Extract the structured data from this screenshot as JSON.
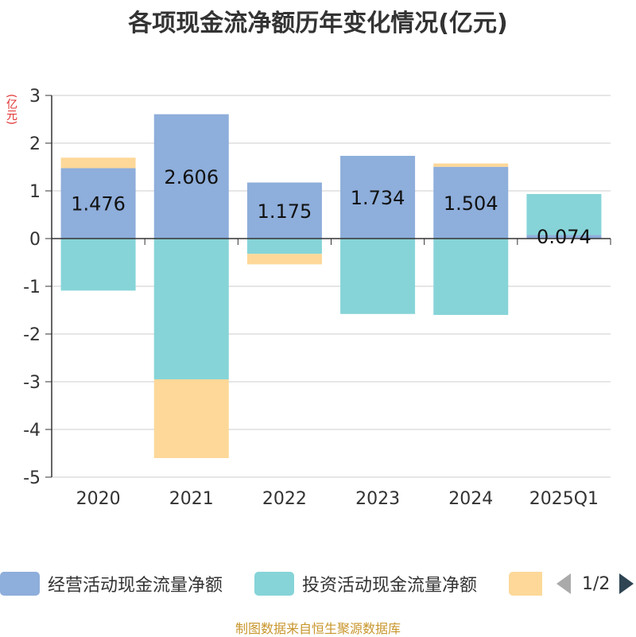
{
  "title": "各项现金流净额历年变化情况(亿元)",
  "unit_label": "(亿元)",
  "footer": "制图数据来自恒生聚源数据库",
  "legend": {
    "items": [
      {
        "label": "经营活动现金流量净额",
        "color": "#8eaedb"
      },
      {
        "label": "投资活动现金流量净额",
        "color": "#86d4d8"
      },
      {
        "label": "",
        "color": "#fdd899"
      }
    ],
    "page_text": "1/2"
  },
  "chart_data": {
    "type": "bar",
    "stacked": true,
    "categories": [
      "2020",
      "2021",
      "2022",
      "2023",
      "2024",
      "2025Q1"
    ],
    "ylim": [
      -5,
      3
    ],
    "yticks": [
      3,
      2,
      1,
      0,
      -1,
      -2,
      -3,
      -4,
      -5
    ],
    "grid": true,
    "legend_position": "bottom",
    "series": [
      {
        "name": "经营活动现金流量净额",
        "color": "#8eaedb",
        "values": [
          1.476,
          2.606,
          1.175,
          1.734,
          1.504,
          0.074
        ],
        "data_labels": [
          "1.476",
          "2.606",
          "1.175",
          "1.734",
          "1.504",
          "0.074"
        ]
      },
      {
        "name": "投资活动现金流量净额",
        "color": "#86d4d8",
        "values": [
          -1.09,
          -2.95,
          -0.32,
          -1.58,
          -1.6,
          0.86
        ]
      },
      {
        "color": "#fdd899",
        "values": [
          0.22,
          -1.65,
          -0.22,
          0.0,
          0.07,
          0.0
        ]
      }
    ]
  }
}
